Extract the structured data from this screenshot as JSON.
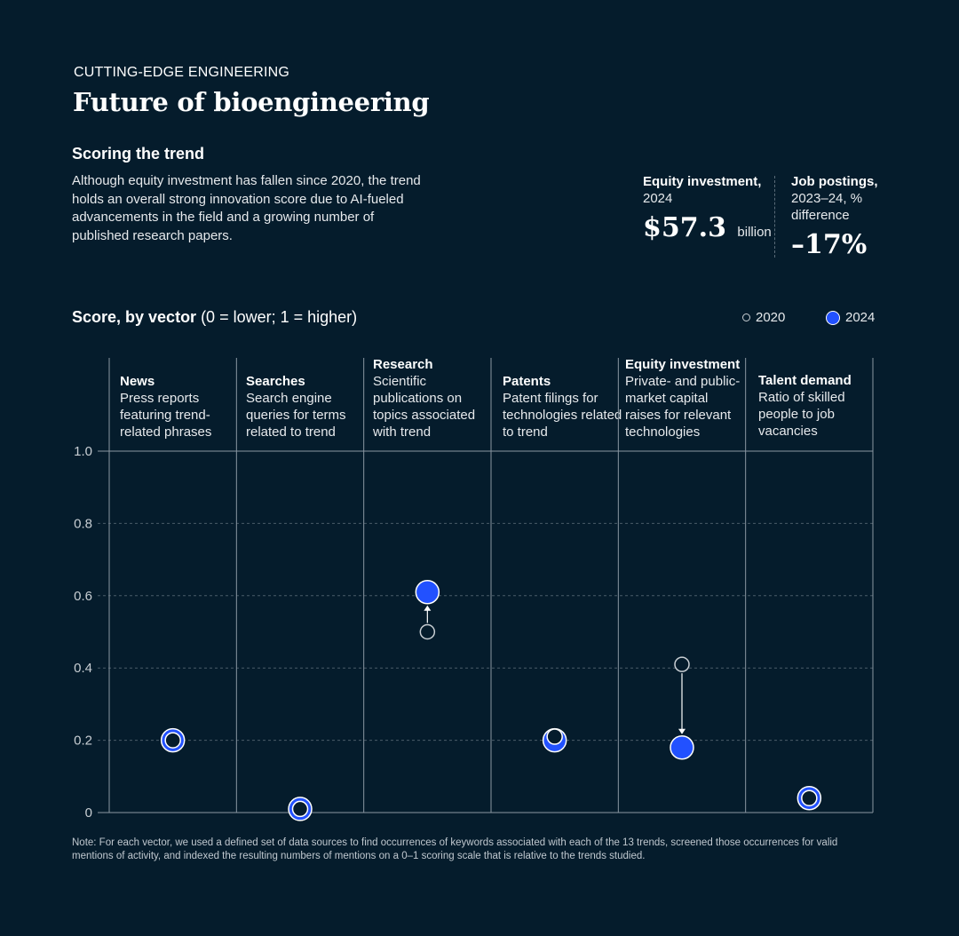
{
  "header": {
    "eyebrow": "CUTTING-EDGE ENGINEERING",
    "title": "Future of bioengineering",
    "subhead": "Scoring the trend",
    "description": "Although equity investment has fallen since 2020, the trend holds an overall strong innovation score due to AI-fueled advancements in the field and a growing number of published research papers."
  },
  "stats": {
    "equity": {
      "label_bold": "Equity investment,",
      "label_rest": "2024",
      "value": "$57.3",
      "unit": "billion"
    },
    "jobs": {
      "label_bold": "Job postings,",
      "label_rest": "2023–24, % difference",
      "value": "–17%"
    }
  },
  "chart_heading": {
    "bold": "Score, by vector",
    "rest": " (0 = lower; 1 = higher)"
  },
  "legend": {
    "label_2020": "2020",
    "label_2024": "2024"
  },
  "colors": {
    "background": "#051c2c",
    "accent": "#2251ff",
    "open_marker": "#c8ced3"
  },
  "chart_data": {
    "type": "scatter",
    "title": "Score, by vector",
    "ylabel": "Score (0 = lower; 1 = higher)",
    "ylim": [
      0,
      1
    ],
    "yticks": [
      "0",
      "0.2",
      "0.4",
      "0.6",
      "0.8",
      "1.0"
    ],
    "categories": [
      {
        "name": "News",
        "description": "Press reports featuring trend-related phrases"
      },
      {
        "name": "Searches",
        "description": "Search engine queries for terms related to trend"
      },
      {
        "name": "Research",
        "description": "Scientific publications on topics associated with trend"
      },
      {
        "name": "Patents",
        "description": "Patent filings for technologies related to trend"
      },
      {
        "name": "Equity investment",
        "description": "Private- and public-market capital raises for relevant technologies"
      },
      {
        "name": "Talent demand",
        "description": "Ratio of skilled people to job vacancies"
      }
    ],
    "series": [
      {
        "name": "2020",
        "values": [
          0.2,
          0.01,
          0.5,
          0.21,
          0.41,
          0.04
        ]
      },
      {
        "name": "2024",
        "values": [
          0.2,
          0.01,
          0.61,
          0.2,
          0.18,
          0.04
        ]
      }
    ]
  },
  "note": "Note: For each vector, we used a defined set of data sources to find occurrences of keywords associated with each of the 13 trends, screened those occurrences for valid mentions of activity, and indexed the resulting numbers of mentions on a 0–1 scoring scale that is relative to the trends studied."
}
